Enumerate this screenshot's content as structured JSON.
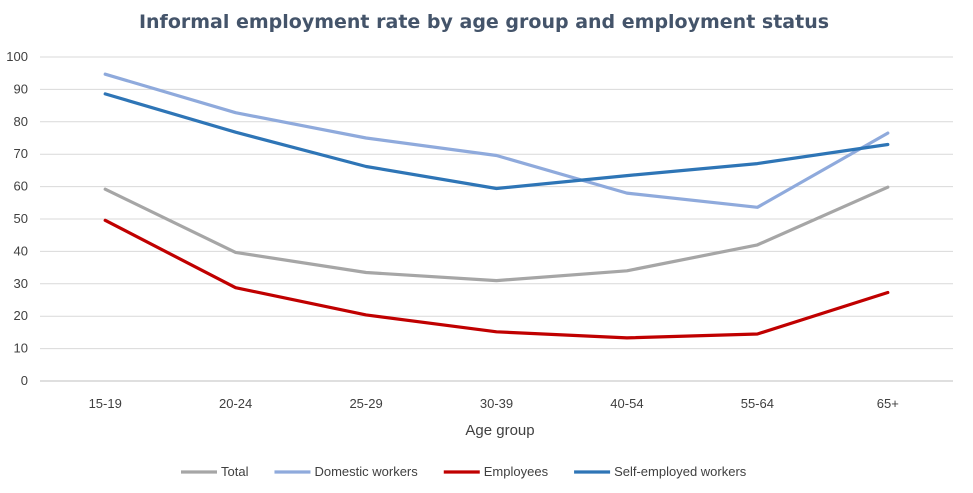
{
  "chart_data": {
    "type": "line",
    "title": "Informal employment rate by age group and employment status",
    "xlabel": "Age group",
    "ylabel": "",
    "categories": [
      "15-19",
      "20-24",
      "25-29",
      "30-39",
      "40-54",
      "55-64",
      "65+"
    ],
    "ylim": [
      0,
      100
    ],
    "yticks": [
      0,
      10,
      20,
      30,
      40,
      50,
      60,
      70,
      80,
      90,
      100
    ],
    "grid": true,
    "legend_position": "bottom",
    "series": [
      {
        "name": "Total",
        "color": "#a6a6a6",
        "values": [
          59.2,
          39.7,
          33.5,
          31.0,
          34.0,
          42.0,
          59.8
        ]
      },
      {
        "name": "Domestic workers",
        "color": "#8faadc",
        "values": [
          94.7,
          82.8,
          75.0,
          69.6,
          58.0,
          53.6,
          76.5
        ]
      },
      {
        "name": "Employees",
        "color": "#c00000",
        "values": [
          49.6,
          28.8,
          20.4,
          15.2,
          13.3,
          14.5,
          27.3
        ]
      },
      {
        "name": "Self-employed workers",
        "color": "#2e75b6",
        "values": [
          88.6,
          76.8,
          66.2,
          59.4,
          63.4,
          67.1,
          73.0
        ]
      }
    ]
  }
}
